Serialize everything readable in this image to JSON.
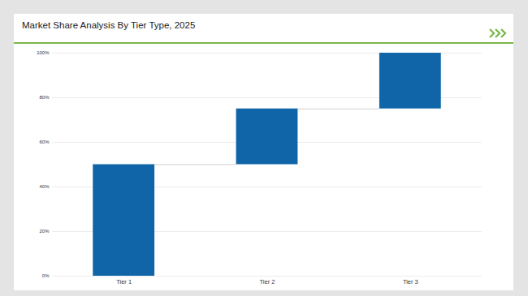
{
  "chart_data": {
    "type": "waterfall",
    "title": "Market Share Analysis By Tier Type, 2025",
    "categories": [
      "Tier 1",
      "Tier 2",
      "Tier 3"
    ],
    "values": [
      50,
      25,
      25
    ],
    "color": "#0f65a7",
    "ylim": [
      0,
      100
    ],
    "yticks": [
      {
        "value": 0,
        "label": "0%"
      },
      {
        "value": 20,
        "label": "20%"
      },
      {
        "value": 40,
        "label": "40%"
      },
      {
        "value": 60,
        "label": "60%"
      },
      {
        "value": 80,
        "label": "80%"
      },
      {
        "value": 100,
        "label": "100%"
      }
    ],
    "grid": true
  }
}
